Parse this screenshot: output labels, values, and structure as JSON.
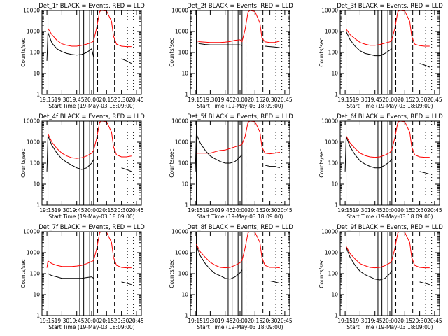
{
  "chart_data": {
    "type": "line",
    "layout": "3x3 grid",
    "shared": {
      "ylabel": "Counts/sec",
      "xlabel": "Start Time (19-May-03 18:09:00)",
      "x_tick_labels": [
        "19:15",
        "19:30",
        "19:45",
        "20:00",
        "20:15",
        "20:30",
        "20:45"
      ],
      "y_tick_labels": [
        "1",
        "10",
        "100",
        "1000",
        "10000"
      ],
      "ylim": [
        1,
        10000
      ],
      "y_scale": "log",
      "xlim": [
        "19:10",
        "20:50"
      ],
      "series_colors": {
        "events": "#000000",
        "lld": "#ff0000"
      },
      "vertical_solid_lines": [
        "19:16",
        "19:48",
        "19:52",
        "19:58",
        "20:02"
      ],
      "vertical_dashed_lines": [
        "20:06",
        "20:23"
      ],
      "vertical_dotted_lines": [
        "20:36",
        "20:42"
      ]
    },
    "panels": [
      {
        "title": "Det_1f BLACK = Events, RED = LLD",
        "x": [
          "19:10",
          "19:15",
          "19:16",
          "19:20",
          "19:25",
          "19:30",
          "19:35",
          "19:40",
          "19:45",
          "19:50",
          "19:55",
          "20:00",
          "20:02",
          "20:05",
          "20:08",
          "20:10",
          "20:15",
          "20:20",
          "20:22",
          "20:25",
          "20:30",
          "20:35",
          "20:40"
        ],
        "series": [
          {
            "key": "lld",
            "values": [
              null,
              null,
              1400,
              700,
              380,
              260,
              220,
              200,
              200,
              220,
              250,
              300,
              350,
              1500,
              9000,
              10000,
              9500,
              3000,
              600,
              250,
              200,
              190,
              190
            ]
          },
          {
            "key": "events",
            "values": [
              null,
              40,
              900,
              280,
              150,
              110,
              90,
              80,
              75,
              80,
              100,
              150,
              60,
              null,
              null,
              null,
              null,
              null,
              null,
              null,
              50,
              40,
              30
            ]
          }
        ]
      },
      {
        "title": "Det_2f BLACK = Events, RED = LLD",
        "x": [
          "19:10",
          "19:15",
          "19:16",
          "19:20",
          "19:25",
          "19:30",
          "19:35",
          "19:40",
          "19:45",
          "19:50",
          "19:55",
          "20:00",
          "20:02",
          "20:05",
          "20:08",
          "20:10",
          "20:15",
          "20:20",
          "20:22",
          "20:25",
          "20:30",
          "20:35",
          "20:40"
        ],
        "series": [
          {
            "key": "lld",
            "values": [
              null,
              null,
              360,
              320,
              310,
              300,
              300,
              300,
              310,
              330,
              380,
              400,
              330,
              1200,
              8500,
              10000,
              9000,
              2500,
              500,
              320,
              300,
              300,
              350
            ]
          },
          {
            "key": "events",
            "values": [
              null,
              null,
              300,
              260,
              240,
              230,
              230,
              230,
              230,
              230,
              230,
              230,
              210,
              null,
              null,
              null,
              null,
              null,
              null,
              200,
              190,
              180,
              170
            ]
          }
        ]
      },
      {
        "title": "Det_3f BLACK = Events, RED = LLD",
        "x": [
          "19:10",
          "19:15",
          "19:16",
          "19:20",
          "19:25",
          "19:30",
          "19:35",
          "19:40",
          "19:45",
          "19:50",
          "19:55",
          "20:00",
          "20:02",
          "20:05",
          "20:08",
          "20:10",
          "20:15",
          "20:20",
          "20:22",
          "20:25",
          "20:30",
          "20:35",
          "20:40"
        ],
        "series": [
          {
            "key": "lld",
            "values": [
              null,
              null,
              1300,
              700,
              450,
              300,
              250,
              220,
              220,
              240,
              280,
              320,
              400,
              1400,
              9000,
              10000,
              9500,
              3000,
              600,
              250,
              210,
              200,
              200
            ]
          },
          {
            "key": "events",
            "values": [
              null,
              null,
              1000,
              400,
              200,
              120,
              90,
              80,
              70,
              70,
              90,
              130,
              150,
              null,
              null,
              null,
              null,
              null,
              null,
              null,
              30,
              25,
              20
            ]
          }
        ]
      },
      {
        "title": "Det_4f BLACK = Events, RED = LLD",
        "x": [
          "19:10",
          "19:15",
          "19:16",
          "19:20",
          "19:25",
          "19:30",
          "19:35",
          "19:40",
          "19:45",
          "19:50",
          "19:55",
          "20:00",
          "20:02",
          "20:05",
          "20:08",
          "20:10",
          "20:15",
          "20:20",
          "20:22",
          "20:25",
          "20:30",
          "20:35",
          "20:40"
        ],
        "series": [
          {
            "key": "lld",
            "values": [
              null,
              null,
              2500,
              1000,
              500,
              300,
              220,
              180,
              170,
              180,
              220,
              300,
              400,
              1500,
              9000,
              10000,
              9500,
              3000,
              600,
              250,
              200,
              200,
              220
            ]
          },
          {
            "key": "events",
            "values": [
              null,
              40,
              2000,
              700,
              300,
              160,
              110,
              80,
              60,
              50,
              60,
              100,
              150,
              null,
              null,
              null,
              null,
              null,
              null,
              null,
              60,
              50,
              40
            ]
          }
        ]
      },
      {
        "title": "Det_5f BLACK = Events, RED = LLD",
        "x": [
          "19:10",
          "19:15",
          "19:16",
          "19:20",
          "19:25",
          "19:30",
          "19:35",
          "19:40",
          "19:45",
          "19:50",
          "19:55",
          "20:00",
          "20:02",
          "20:05",
          "20:08",
          "20:10",
          "20:15",
          "20:20",
          "20:22",
          "20:25",
          "20:30",
          "20:35",
          "20:40"
        ],
        "series": [
          {
            "key": "lld",
            "values": [
              null,
              null,
              300,
              300,
              300,
              300,
              350,
              400,
              420,
              500,
              600,
              700,
              800,
              1800,
              9000,
              10000,
              9500,
              3000,
              600,
              300,
              280,
              300,
              330
            ]
          },
          {
            "key": "events",
            "values": [
              null,
              40,
              2500,
              900,
              400,
              220,
              160,
              120,
              100,
              100,
              120,
              200,
              250,
              null,
              null,
              null,
              null,
              null,
              null,
              80,
              70,
              70,
              60
            ]
          }
        ]
      },
      {
        "title": "Det_6f BLACK = Events, RED = LLD",
        "x": [
          "19:10",
          "19:15",
          "19:16",
          "19:20",
          "19:25",
          "19:30",
          "19:35",
          "19:40",
          "19:45",
          "19:50",
          "19:55",
          "20:00",
          "20:02",
          "20:05",
          "20:08",
          "20:10",
          "20:15",
          "20:20",
          "20:22",
          "20:25",
          "20:30",
          "20:35",
          "20:40"
        ],
        "series": [
          {
            "key": "lld",
            "values": [
              null,
              null,
              2000,
              900,
              500,
              300,
              230,
              200,
              190,
              200,
              240,
              320,
              420,
              1600,
              9000,
              10000,
              9500,
              3000,
              600,
              250,
              200,
              190,
              190
            ]
          },
          {
            "key": "events",
            "values": [
              null,
              40,
              1800,
              600,
              250,
              130,
              90,
              70,
              60,
              60,
              80,
              120,
              160,
              null,
              null,
              null,
              null,
              null,
              null,
              null,
              40,
              35,
              30
            ]
          }
        ]
      },
      {
        "title": "Det_7f BLACK = Events, RED = LLD",
        "x": [
          "19:10",
          "19:15",
          "19:16",
          "19:20",
          "19:25",
          "19:30",
          "19:35",
          "19:40",
          "19:45",
          "19:50",
          "19:55",
          "20:00",
          "20:02",
          "20:05",
          "20:08",
          "20:10",
          "20:15",
          "20:20",
          "20:22",
          "20:25",
          "20:30",
          "20:35",
          "20:40"
        ],
        "series": [
          {
            "key": "lld",
            "values": [
              null,
              190,
              400,
              300,
              250,
              220,
              220,
              220,
              230,
              250,
              300,
              380,
              420,
              1500,
              9000,
              10000,
              9500,
              3000,
              600,
              250,
              200,
              190,
              190
            ]
          },
          {
            "key": "events",
            "values": [
              null,
              null,
              100,
              80,
              70,
              60,
              60,
              60,
              60,
              60,
              65,
              70,
              60,
              null,
              null,
              null,
              null,
              null,
              null,
              null,
              40,
              35,
              30
            ]
          }
        ]
      },
      {
        "title": "Det_8f BLACK = Events, RED = LLD",
        "x": [
          "19:10",
          "19:15",
          "19:16",
          "19:20",
          "19:25",
          "19:30",
          "19:35",
          "19:40",
          "19:45",
          "19:50",
          "19:55",
          "20:00",
          "20:02",
          "20:05",
          "20:08",
          "20:10",
          "20:15",
          "20:20",
          "20:22",
          "20:25",
          "20:30",
          "20:35",
          "20:40"
        ],
        "series": [
          {
            "key": "lld",
            "values": [
              null,
              null,
              2500,
              1100,
              600,
              350,
              250,
              200,
              190,
              200,
              250,
              330,
              430,
              1600,
              9000,
              10000,
              9500,
              3000,
              600,
              250,
              200,
              200,
              190
            ]
          },
          {
            "key": "events",
            "values": [
              null,
              null,
              2200,
              700,
              300,
              160,
              100,
              80,
              60,
              55,
              70,
              110,
              150,
              null,
              null,
              null,
              null,
              null,
              null,
              null,
              45,
              40,
              35
            ]
          }
        ]
      },
      {
        "title": "Det_9f BLACK = Events, RED = LLD",
        "x": [
          "19:10",
          "19:15",
          "19:16",
          "19:20",
          "19:25",
          "19:30",
          "19:35",
          "19:40",
          "19:45",
          "19:50",
          "19:55",
          "20:00",
          "20:02",
          "20:05",
          "20:08",
          "20:10",
          "20:15",
          "20:20",
          "20:22",
          "20:25",
          "20:30",
          "20:35",
          "20:40"
        ],
        "series": [
          {
            "key": "lld",
            "values": [
              null,
              null,
              2000,
              900,
              500,
              300,
              240,
              200,
              190,
              200,
              240,
              320,
              420,
              1600,
              9000,
              10000,
              9500,
              3000,
              600,
              250,
              200,
              190,
              190
            ]
          },
          {
            "key": "events",
            "values": [
              null,
              null,
              1800,
              600,
              250,
              130,
              90,
              70,
              55,
              50,
              60,
              100,
              140,
              null,
              null,
              null,
              null,
              null,
              null,
              null,
              40,
              35,
              30
            ]
          }
        ]
      }
    ]
  }
}
